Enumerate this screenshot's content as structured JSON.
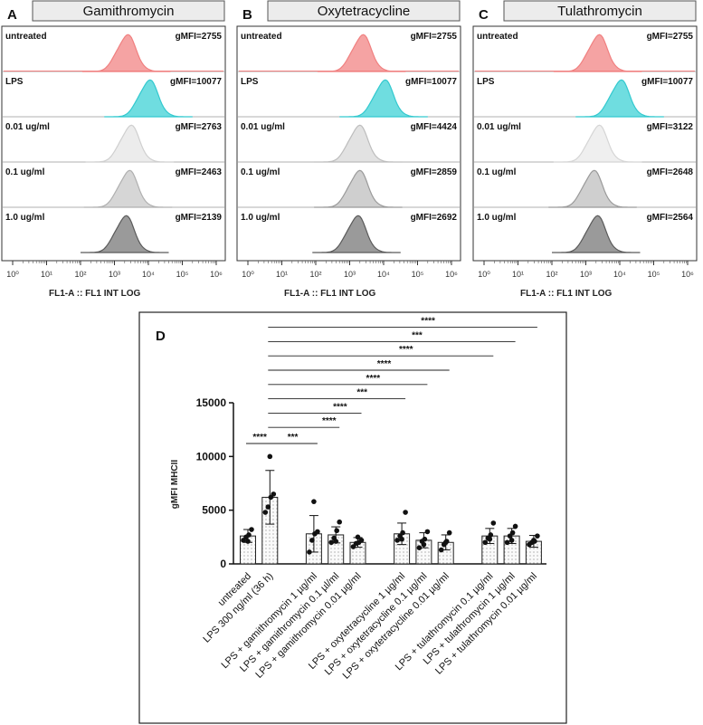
{
  "histogram_panels": [
    {
      "letter": "A",
      "title": "Gamithromycin",
      "rows": [
        {
          "label": "untreated",
          "gmfi": "gMFI=2755",
          "peak_log": 3.35,
          "color": "#f08080",
          "fill": "#f5a3a3"
        },
        {
          "label": "LPS",
          "gmfi": "gMFI=10077",
          "peak_log": 4.0,
          "color": "#33c9cf",
          "fill": "#6fdde0"
        },
        {
          "label": "0.01 ug/ml",
          "gmfi": "gMFI=2763",
          "peak_log": 3.45,
          "color": "#cfcfcf",
          "fill": "#ececec"
        },
        {
          "label": "0.1 ug/ml",
          "gmfi": "gMFI=2463",
          "peak_log": 3.4,
          "color": "#b0b0b0",
          "fill": "#d6d6d6"
        },
        {
          "label": "1.0 ug/ml",
          "gmfi": "gMFI=2139",
          "peak_log": 3.3,
          "color": "#5a5a5a",
          "fill": "#9a9a9a"
        }
      ],
      "xlabel": "FL1-A :: FL1 INT LOG"
    },
    {
      "letter": "B",
      "title": "Oxytetracycline",
      "rows": [
        {
          "label": "untreated",
          "gmfi": "gMFI=2755",
          "peak_log": 3.35,
          "color": "#f08080",
          "fill": "#f5a3a3"
        },
        {
          "label": "LPS",
          "gmfi": "gMFI=10077",
          "peak_log": 4.0,
          "color": "#33c9cf",
          "fill": "#6fdde0"
        },
        {
          "label": "0.01 ug/ml",
          "gmfi": "gMFI=4424",
          "peak_log": 3.25,
          "color": "#bdbdbd",
          "fill": "#e2e2e2"
        },
        {
          "label": "0.1 ug/ml",
          "gmfi": "gMFI=2859",
          "peak_log": 3.25,
          "color": "#9a9a9a",
          "fill": "#cfcfcf"
        },
        {
          "label": "1.0 ug/ml",
          "gmfi": "gMFI=2692",
          "peak_log": 3.2,
          "color": "#5a5a5a",
          "fill": "#9a9a9a"
        }
      ],
      "xlabel": "FL1-A :: FL1 INT LOG"
    },
    {
      "letter": "C",
      "title": "Tulathromycin",
      "rows": [
        {
          "label": "untreated",
          "gmfi": "gMFI=2755",
          "peak_log": 3.35,
          "color": "#f08080",
          "fill": "#f5a3a3"
        },
        {
          "label": "LPS",
          "gmfi": "gMFI=10077",
          "peak_log": 4.0,
          "color": "#33c9cf",
          "fill": "#6fdde0"
        },
        {
          "label": "0.01 ug/ml",
          "gmfi": "gMFI=3122",
          "peak_log": 3.35,
          "color": "#d5d5d5",
          "fill": "#efefef"
        },
        {
          "label": "0.1 ug/ml",
          "gmfi": "gMFI=2648",
          "peak_log": 3.2,
          "color": "#9a9a9a",
          "fill": "#cfcfcf"
        },
        {
          "label": "1.0 ug/ml",
          "gmfi": "gMFI=2564",
          "peak_log": 3.3,
          "color": "#5a5a5a",
          "fill": "#9a9a9a"
        }
      ],
      "xlabel": "FL1-A :: FL1 INT LOG"
    }
  ],
  "histogram_axis": {
    "min_log": 0,
    "max_log": 6,
    "tick_labels": [
      "10⁰",
      "10¹",
      "10²",
      "10³",
      "10⁴",
      "10⁵",
      "10⁶"
    ]
  },
  "chart_data": {
    "type": "bar",
    "panel_letter": "D",
    "title": "",
    "ylabel": "gMFI MHCII",
    "ylim": [
      0,
      15000
    ],
    "yticks": [
      0,
      5000,
      10000,
      15000
    ],
    "categories": [
      "untreated",
      "LPS 300 ng/ml (36 h)",
      "LPS + gamithromycin 1 µg/ml",
      "LPS + gamithromycin 0.1 µl/ml",
      "LPS + gamithromycin 0.01 µg/ml",
      "LPS + oxytetracycline 1 µg/ml",
      "LPS + oxytetracycline 0.1 µg/ml",
      "LPS + oxytetracycline 0.01 µg/ml",
      "LPS + tulathromycin 0.1 µg/ml",
      "LPS + tulathromycin 1 µg/ml",
      "LPS + tulathromycin 0.01 µg/ml"
    ],
    "slots": [
      0,
      1,
      3,
      4,
      5,
      7,
      8,
      9,
      11,
      12,
      13
    ],
    "values": [
      2600,
      6200,
      2800,
      2700,
      2000,
      2800,
      2200,
      2000,
      2600,
      2600,
      2100
    ],
    "errors": [
      600,
      2500,
      1700,
      750,
      450,
      1000,
      700,
      700,
      700,
      700,
      550
    ],
    "points": [
      [
        2200,
        2500,
        2700,
        3200,
        2100
      ],
      [
        4800,
        5300,
        6200,
        6500,
        10000
      ],
      [
        1100,
        2200,
        2800,
        3000,
        5800
      ],
      [
        2000,
        2400,
        3100,
        3900,
        2100
      ],
      [
        1600,
        1900,
        2000,
        2200,
        2500
      ],
      [
        2200,
        2600,
        2900,
        4800,
        2300
      ],
      [
        1500,
        2100,
        2300,
        3000,
        1800
      ],
      [
        1300,
        1800,
        2100,
        2900,
        2000
      ],
      [
        2000,
        2400,
        2700,
        3800,
        2300
      ],
      [
        2000,
        2600,
        2900,
        3500,
        2200
      ],
      [
        1800,
        2000,
        2100,
        2600,
        2200
      ]
    ],
    "significance": [
      {
        "from": 0,
        "to": 1,
        "label": "****"
      },
      {
        "from": 1,
        "to": 2,
        "label": "***"
      },
      {
        "from": 1,
        "to": 3,
        "label": "****"
      },
      {
        "from": 1,
        "to": 4,
        "label": "****"
      },
      {
        "from": 1,
        "to": 5,
        "label": "***"
      },
      {
        "from": 1,
        "to": 6,
        "label": "****"
      },
      {
        "from": 1,
        "to": 7,
        "label": "****"
      },
      {
        "from": 1,
        "to": 8,
        "label": "****"
      },
      {
        "from": 1,
        "to": 9,
        "label": "***"
      },
      {
        "from": 1,
        "to": 10,
        "label": "****"
      }
    ]
  }
}
